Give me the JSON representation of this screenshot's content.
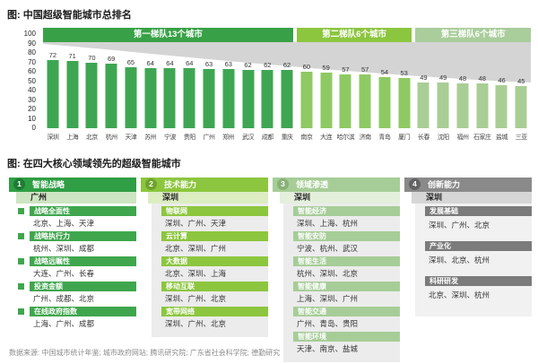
{
  "figure1_title": "图: 中国超级智能城市总排名",
  "figure2_title": "图: 在四大核心领域领先的超级智能城市",
  "footer_source": "数据来源: 中国城市统计年鉴; 城市政府网站; 腾讯研究院; 广东省社会科学院; 德勤研究",
  "colors": {
    "trend_area_gray": "#d4d4d4",
    "tier1_green": "#38a147",
    "tier2_green": "#8cc63f",
    "tier3_green": "#a9cd9b",
    "innovation_gray": "#8a8a8a"
  },
  "chart_data": [
    {
      "type": "bar",
      "title": "图: 中国超级智能城市总排名",
      "categories": [
        "深圳",
        "上海",
        "北京",
        "杭州",
        "天津",
        "苏州",
        "宁波",
        "贵阳",
        "广州",
        "郑州",
        "武汉",
        "成都",
        "重庆",
        "南京",
        "大连",
        "哈尔滨",
        "济南",
        "青岛",
        "厦门",
        "长春",
        "沈阳",
        "福州",
        "石家庄",
        "盐城",
        "三亚"
      ],
      "values": [
        72,
        71,
        70,
        69,
        65,
        64,
        64,
        64,
        63,
        63,
        62,
        62,
        62,
        60,
        59,
        57,
        57,
        54,
        53,
        49,
        49,
        48,
        48,
        46,
        45
      ],
      "ylim": [
        0,
        100
      ],
      "yticks": [
        100,
        90,
        80,
        70,
        60,
        50,
        40,
        30,
        20,
        10,
        0
      ],
      "grid": false,
      "legend_position": "none",
      "tiers": [
        {
          "label": "第一梯队13个城市",
          "count": 13,
          "band_color": "#38a147",
          "bar_color": "#3ea652"
        },
        {
          "label": "第二梯队6个城市",
          "count": 6,
          "band_color": "#8cc63f",
          "bar_color": "#8fc963"
        },
        {
          "label": "第三梯队6个城市",
          "count": 6,
          "band_color": "#a9cd9b",
          "bar_color": "#a9ce95"
        }
      ]
    },
    {
      "type": "table",
      "title": "图: 在四大核心领域领先的超级智能城市",
      "sections": [
        {
          "num": "1",
          "title": "智能战略",
          "top_city": "广州",
          "colors": {
            "header": "#2f9e44",
            "circle": "#1d7c32",
            "champion_bg": "#cde5c2",
            "subbar": "#3fa64d",
            "panel": "#ffffff"
          },
          "items": [
            {
              "label": "战略全面性",
              "cities": "北京、上海、天津"
            },
            {
              "label": "战略执行力",
              "cities": "杭州、深圳、成都"
            },
            {
              "label": "战略远瞩性",
              "cities": "大连、广州、长春"
            },
            {
              "label": "投资金额",
              "cities": "广州、成都、北京"
            },
            {
              "label": "在线政府指数",
              "cities": "上海、广州、成都"
            }
          ]
        },
        {
          "num": "2",
          "title": "技术能力",
          "top_city": "深圳",
          "colors": {
            "header": "#8cc63e",
            "circle": "#6fa32c",
            "champion_bg": "#dcedc2",
            "subbar": "#8cc63e",
            "panel": "#ececec"
          },
          "items": [
            {
              "label": "物联网",
              "cities": "深圳、广州、天津"
            },
            {
              "label": "云计算",
              "cities": "北京、深圳、广州"
            },
            {
              "label": "大数据",
              "cities": "北京、深圳、上海"
            },
            {
              "label": "移动互联",
              "cities": "深圳、广州、北京"
            },
            {
              "label": "宽带网络",
              "cities": "深圳、广州、北京"
            }
          ]
        },
        {
          "num": "3",
          "title": "领域渗透",
          "top_city": "深圳",
          "colors": {
            "header": "#a6cd97",
            "circle": "#88b178",
            "champion_bg": "#e4efdc",
            "subbar": "#a6cd97",
            "panel": "#ececec"
          },
          "items": [
            {
              "label": "智能经济",
              "cities": "深圳、上海、杭州"
            },
            {
              "label": "智能安防",
              "cities": "宁波、杭州、武汉"
            },
            {
              "label": "智能生活",
              "cities": "杭州、深圳、北京"
            },
            {
              "label": "智能健康",
              "cities": "上海、深圳、广州"
            },
            {
              "label": "智能交通",
              "cities": "广州、青岛、贵阳"
            },
            {
              "label": "智能环境",
              "cities": "天津、南京、盐城"
            }
          ]
        },
        {
          "num": "4",
          "title": "创新能力",
          "top_city": "深圳",
          "colors": {
            "header": "#8a8a8a",
            "circle": "#636363",
            "champion_bg": "#d6d6d6",
            "subbar": "#7b7b7b",
            "panel": "#f1f1f1"
          },
          "items": [
            {
              "label": "发展基础",
              "cities": "深圳、广州、北京"
            },
            {
              "label": "产业化",
              "cities": "深圳、北京、杭州"
            },
            {
              "label": "科研研发",
              "cities": "北京、深圳、杭州"
            }
          ]
        }
      ]
    }
  ]
}
